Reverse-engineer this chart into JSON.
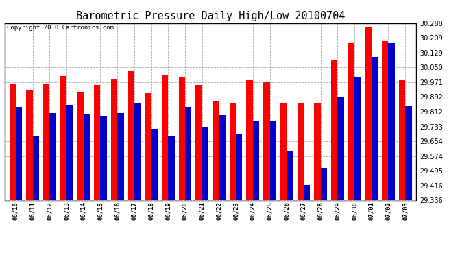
{
  "title": "Barometric Pressure Daily High/Low 20100704",
  "copyright": "Copyright 2010 Cartronics.com",
  "categories": [
    "06/10",
    "06/11",
    "06/12",
    "06/13",
    "06/14",
    "06/15",
    "06/16",
    "06/17",
    "06/18",
    "06/19",
    "06/20",
    "06/21",
    "06/22",
    "06/23",
    "06/24",
    "06/25",
    "06/26",
    "06/27",
    "06/28",
    "06/29",
    "06/30",
    "07/01",
    "07/02",
    "07/03"
  ],
  "highs": [
    29.96,
    29.93,
    29.96,
    30.005,
    29.92,
    29.955,
    29.99,
    30.03,
    29.91,
    30.01,
    29.995,
    29.955,
    29.87,
    29.86,
    29.98,
    29.975,
    29.855,
    29.855,
    29.86,
    30.09,
    30.18,
    30.27,
    30.19,
    29.98
  ],
  "lows": [
    29.84,
    29.685,
    29.805,
    29.85,
    29.8,
    29.79,
    29.805,
    29.855,
    29.72,
    29.68,
    29.84,
    29.73,
    29.795,
    29.695,
    29.76,
    29.76,
    29.6,
    29.42,
    29.51,
    29.89,
    30.0,
    30.105,
    30.18,
    29.845
  ],
  "high_color": "#FF0000",
  "low_color": "#0000CC",
  "ylim_min": 29.336,
  "ylim_max": 30.288,
  "yticks": [
    29.336,
    29.416,
    29.495,
    29.574,
    29.654,
    29.733,
    29.812,
    29.892,
    29.971,
    30.05,
    30.129,
    30.209,
    30.288
  ],
  "title_fontsize": 11,
  "copyright_fontsize": 6.5,
  "bg_color": "#FFFFFF",
  "grid_color": "#AAAAAA",
  "bar_width": 0.38
}
